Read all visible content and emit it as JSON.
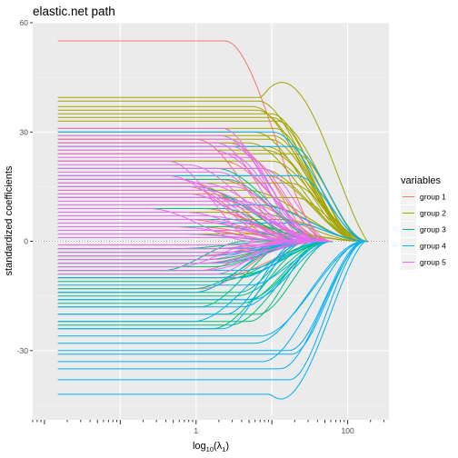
{
  "chart_data": {
    "type": "line",
    "title": "elastic.net path",
    "xlabel": "log10(λ1)",
    "ylabel": "standardized coefficients",
    "x_scale": "log10",
    "xlim": [
      0.007,
      350
    ],
    "ylim": [
      -49,
      60
    ],
    "x_tick_labels": [
      {
        "value": 1,
        "label": "1"
      },
      {
        "value": 100,
        "label": "100"
      }
    ],
    "y_ticks": [
      -30,
      0,
      30,
      60
    ],
    "y_tick_labels": [
      "-30",
      "0",
      "30",
      "60"
    ],
    "zero_line": {
      "y": 0,
      "style": "dotted"
    },
    "grid": true,
    "panel_background": "#ebebeb",
    "legend": {
      "title": "variables",
      "position": "right",
      "entries": [
        {
          "name": "group 1",
          "color": "#F8766D"
        },
        {
          "name": "group 2",
          "color": "#A3A500"
        },
        {
          "name": "group 3",
          "color": "#00BF7D"
        },
        {
          "name": "group 4",
          "color": "#00B0F6"
        },
        {
          "name": "group 5",
          "color": "#E76BF3"
        }
      ]
    },
    "series": [
      {
        "name": "group 1",
        "color": "#F8766D",
        "coef": [
          55,
          28,
          27,
          24,
          22,
          17,
          16,
          15,
          13,
          12,
          10,
          9,
          8,
          6,
          5,
          4,
          3,
          -2,
          -4,
          -6,
          -8,
          -10,
          -13
        ]
      },
      {
        "name": "group 2",
        "color": "#A3A500",
        "coef": [
          39.5,
          38.5,
          37,
          36,
          35,
          34,
          33,
          31,
          30,
          29,
          28,
          27,
          26,
          25,
          24,
          22,
          20,
          18,
          16,
          14,
          12,
          10,
          8,
          6,
          4,
          2
        ]
      },
      {
        "name": "group 3",
        "color": "#00BF7D",
        "coef": [
          -24,
          -23,
          -22,
          -20,
          -18,
          -17,
          -16,
          -15,
          -14,
          -13,
          -11,
          -10,
          -9,
          -8,
          -7,
          -6,
          -5,
          -3,
          -2,
          2,
          4,
          6,
          9,
          12,
          15,
          17,
          20
        ]
      },
      {
        "name": "group 4",
        "color": "#00B0F6",
        "coef": [
          -42,
          -38,
          -35,
          -33,
          -31,
          -30,
          -28,
          -26,
          -24,
          -22,
          -20,
          -18,
          -16,
          -14,
          -12,
          -10,
          -8,
          -6,
          -4,
          -2,
          5,
          10,
          18,
          26,
          30
        ]
      },
      {
        "name": "group 5",
        "color": "#E76BF3",
        "coef": [
          31,
          29,
          28,
          27,
          26,
          25,
          24,
          23,
          22,
          21,
          20,
          19,
          18,
          17,
          16,
          15,
          14,
          13,
          12,
          11,
          10,
          9,
          8,
          7,
          6,
          5,
          4,
          3,
          2,
          1,
          -1,
          -2,
          -3,
          -4,
          -5,
          -6,
          -7,
          -8,
          -9
        ]
      }
    ]
  }
}
